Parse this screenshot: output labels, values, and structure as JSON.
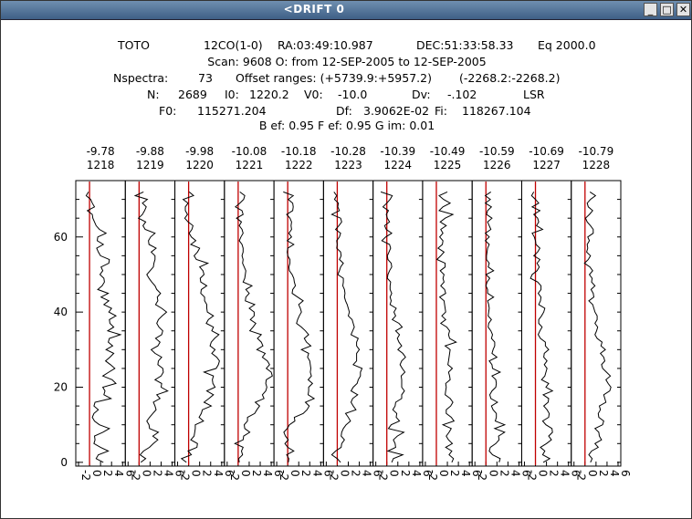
{
  "window": {
    "title": "<DRIFT   0",
    "minimize_glyph": "_",
    "maximize_glyph": "□",
    "close_glyph": "✕"
  },
  "header": {
    "line1": [
      "TOTO",
      "12CO(1-0)",
      "RA:03:49:10.987",
      "DEC:51:33:58.33",
      "Eq 2000.0"
    ],
    "line2": "Scan: 9608   O: from 12-SEP-2005 to 12-SEP-2005",
    "line3": [
      "Nspectra:",
      "73",
      "Offset ranges: (+5739.9:+5957.2)",
      "(-2268.2:-2268.2)"
    ],
    "line4": [
      "N:",
      "2689",
      "I0:",
      "1220.2",
      "V0:",
      "-10.0",
      "Dv:",
      "-.102",
      "LSR"
    ],
    "line5": [
      "F0:",
      "115271.204",
      "Df:",
      "3.9062E-02",
      "Fi:",
      "118267.104"
    ],
    "line6": "B ef: 0.95   F ef: 0.95   G im: 0.01"
  },
  "chart_data": {
    "type": "line",
    "title": "",
    "xlabel": "",
    "ylabel": "",
    "ylim": [
      -1,
      75
    ],
    "yticks": [
      0,
      20,
      40,
      60
    ],
    "panel_xlim": [
      -2,
      6
    ],
    "panel_xtick_labels": [
      "-2",
      "0",
      "2",
      "4",
      "6"
    ],
    "zero_line_color": "#c00000",
    "series": [
      {
        "velocity": "-9.78",
        "channel": "1218",
        "values": [
          2.5,
          1.2,
          1.6,
          3.4,
          2.0,
          0.8,
          1.0,
          0.9,
          2.4,
          3.6,
          1.8,
          0.9,
          0.5,
          0.8,
          1.6,
          0.8,
          1.0,
          3.9,
          2.6,
          2.8,
          2.4,
          4.8,
          4.1,
          2.4,
          3.5,
          4.6,
          3.8,
          2.9,
          3.7,
          4.4,
          3.0,
          4.2,
          3.4,
          3.6,
          5.6,
          3.3,
          4.4,
          3.7,
          3.6,
          4.8,
          3.5,
          4.0,
          2.6,
          3.5,
          2.1,
          3.4,
          1.5,
          2.3,
          2.7,
          2.6,
          1.9,
          2.4,
          2.1,
          3.5,
          3.6,
          2.0,
          1.6,
          1.3,
          2.5,
          1.4,
          1.5,
          3.0,
          1.8,
          1.2,
          0.9,
          0.6,
          0.5,
          -0.4,
          0.9,
          0.5,
          0.2,
          -0.6,
          -0.2
        ]
      },
      {
        "velocity": "-9.88",
        "channel": "1219",
        "values": [
          0.3,
          1.2,
          0.2,
          0.8,
          1.9,
          2.6,
          3.4,
          2.5,
          3.5,
          1.9,
          1.8,
          1.4,
          1.9,
          2.5,
          3.1,
          2.9,
          2.6,
          3.8,
          3.2,
          5.2,
          4.0,
          4.1,
          2.9,
          4.0,
          4.4,
          4.3,
          3.4,
          3.5,
          4.1,
          2.9,
          2.2,
          3.4,
          3.8,
          3.0,
          4.1,
          4.3,
          3.6,
          3.2,
          3.5,
          4.2,
          5.0,
          4.1,
          3.0,
          3.4,
          3.3,
          3.9,
          3.2,
          2.9,
          2.3,
          1.8,
          1.4,
          2.0,
          2.6,
          2.7,
          2.9,
          2.9,
          2.2,
          3.1,
          1.8,
          1.7,
          2.1,
          2.9,
          1.1,
          0.7,
          1.2,
          -0.1,
          0.6,
          1.0,
          1.3,
          0.6,
          1.5,
          -0.7,
          0.8
        ]
      },
      {
        "velocity": "-9.98",
        "channel": "1220",
        "values": [
          -0.4,
          -1.3,
          0.5,
          -0.1,
          1.5,
          1.6,
          0.4,
          1.0,
          1.1,
          1.2,
          1.2,
          2.7,
          1.9,
          2.3,
          2.5,
          4.1,
          2.8,
          3.7,
          4.5,
          3.3,
          4.8,
          4.4,
          4.3,
          4.5,
          2.8,
          5.0,
          5.4,
          5.6,
          5.1,
          4.2,
          4.8,
          3.9,
          4.1,
          4.7,
          5.5,
          4.2,
          4.5,
          3.2,
          3.6,
          4.5,
          3.4,
          3.3,
          3.3,
          2.9,
          2.9,
          2.2,
          2.3,
          3.3,
          2.2,
          2.1,
          2.8,
          2.6,
          2.0,
          3.5,
          1.4,
          1.0,
          1.6,
          2.0,
          0.4,
          1.3,
          0.5,
          0.1,
          0.6,
          0.8,
          -0.1,
          -0.7,
          -0.2,
          -0.6,
          -0.6,
          -0.1,
          -1.0,
          0.9,
          0.1
        ]
      },
      {
        "velocity": "-10.08",
        "channel": "1221",
        "values": [
          0.2,
          0.1,
          0.8,
          0.6,
          0.9,
          -0.6,
          0.9,
          1.0,
          2.1,
          1.2,
          1.1,
          1.7,
          1.7,
          3.0,
          3.4,
          3.9,
          3.1,
          4.7,
          4.4,
          5.0,
          5.2,
          5.0,
          5.1,
          6.2,
          6.0,
          5.1,
          5.7,
          5.3,
          4.4,
          4.9,
          3.4,
          4.5,
          4.2,
          3.5,
          4.2,
          2.1,
          2.7,
          3.2,
          2.2,
          2.9,
          2.9,
          2.0,
          3.0,
          1.3,
          1.4,
          2.0,
          1.4,
          2.5,
          0.9,
          1.2,
          1.3,
          1.4,
          1.1,
          0.8,
          0.9,
          0.7,
          0.9,
          0.9,
          0.7,
          0.2,
          0.5,
          0.9,
          0.7,
          0.2,
          0.6,
          -0.3,
          0.9,
          0.7,
          -0.5,
          0.3,
          1.0,
          1.2,
          0.3
        ]
      },
      {
        "velocity": "-10.18",
        "channel": "1222",
        "values": [
          0.1,
          0.2,
          -0.2,
          1.1,
          0.0,
          -0.5,
          0.1,
          -0.4,
          -0.7,
          -0.1,
          0.3,
          1.3,
          1.2,
          2.8,
          3.5,
          3.9,
          3.2,
          4.8,
          3.7,
          3.8,
          3.8,
          4.5,
          3.7,
          4.3,
          4.1,
          4.2,
          4.1,
          4.0,
          3.6,
          3.8,
          2.5,
          4.2,
          3.4,
          3.0,
          3.8,
          3.2,
          2.5,
          1.6,
          1.8,
          2.1,
          2.5,
          2.3,
          2.0,
          2.8,
          1.8,
          0.8,
          0.9,
          1.4,
          1.2,
          1.1,
          0.8,
          0.3,
          0.2,
          0.4,
          0.4,
          0.0,
          -0.1,
          0.0,
          1.1,
          -0.1,
          0.7,
          0.2,
          0.7,
          0.6,
          0.7,
          0.4,
          -0.2,
          0.9,
          1.0,
          0.9,
          0.1,
          1.0,
          -0.8
        ]
      },
      {
        "velocity": "-10.28",
        "channel": "1223",
        "values": [
          0.6,
          0.0,
          -1.0,
          -0.3,
          0.7,
          0.8,
          1.3,
          0.7,
          0.8,
          1.1,
          1.6,
          2.4,
          2.0,
          1.5,
          3.4,
          2.9,
          2.5,
          2.8,
          3.7,
          2.5,
          2.9,
          3.6,
          3.8,
          4.2,
          4.2,
          4.5,
          2.9,
          3.5,
          3.5,
          3.5,
          4.0,
          3.5,
          3.5,
          3.8,
          2.5,
          2.8,
          3.1,
          2.9,
          2.7,
          2.0,
          2.2,
          2.0,
          1.8,
          1.5,
          1.3,
          1.4,
          1.3,
          1.0,
          1.1,
          1.1,
          0.1,
          0.4,
          0.6,
          1.1,
          0.4,
          0.7,
          0.6,
          -0.1,
          0.0,
          -0.1,
          0.4,
          0.6,
          -0.3,
          0.3,
          0.8,
          0.6,
          -1.0,
          0.4,
          0.1,
          0.2,
          -0.5,
          -0.1,
          -0.6
        ]
      },
      {
        "velocity": "-10.39",
        "channel": "1224",
        "values": [
          0.9,
          1.2,
          2.9,
          0.2,
          1.6,
          1.5,
          1.2,
          1.9,
          3.1,
          0.3,
          0.8,
          2.3,
          1.7,
          1.8,
          1.1,
          1.5,
          1.6,
          2.7,
          2.7,
          3.2,
          2.7,
          2.7,
          2.7,
          2.6,
          3.3,
          2.8,
          2.4,
          2.7,
          3.4,
          2.9,
          2.0,
          2.7,
          2.2,
          1.9,
          2.3,
          1.6,
          2.8,
          2.2,
          1.0,
          1.6,
          1.3,
          1.7,
          0.6,
          0.8,
          0.6,
          0.9,
          0.6,
          0.6,
          0.7,
          0.1,
          0.2,
          0.5,
          0.9,
          0.8,
          0.2,
          0.1,
          0.4,
          0.7,
          0.5,
          -0.9,
          -0.2,
          0.9,
          -0.1,
          -0.4,
          0.5,
          0.1,
          -0.1,
          0.3,
          -0.7,
          0.0,
          0.6,
          1.0,
          -1.1
        ]
      },
      {
        "velocity": "-10.49",
        "channel": "1225",
        "values": [
          2.8,
          3.1,
          2.3,
          2.8,
          1.7,
          2.9,
          2.2,
          1.8,
          2.3,
          2.7,
          1.2,
          3.2,
          2.7,
          1.8,
          1.8,
          2.6,
          3.0,
          2.5,
          1.6,
          1.7,
          1.8,
          1.7,
          2.5,
          2.4,
          2.2,
          2.9,
          2.1,
          2.2,
          2.3,
          2.4,
          2.5,
          1.6,
          3.6,
          2.4,
          2.2,
          2.4,
          1.9,
          0.8,
          1.7,
          1.0,
          1.7,
          1.6,
          1.5,
          1.4,
          0.6,
          1.7,
          1.5,
          0.8,
          1.4,
          1.2,
          1.4,
          0.7,
          1.6,
          1.6,
          0.1,
          0.8,
          1.4,
          0.3,
          1.1,
          1.2,
          0.6,
          1.2,
          0.8,
          1.8,
          0.7,
          1.6,
          3.0,
          0.5,
          1.2,
          2.5,
          1.3,
          0.5,
          2.0
        ]
      },
      {
        "velocity": "-10.59",
        "channel": "1226",
        "values": [
          2.4,
          2.6,
          1.2,
          0.6,
          0.8,
          1.8,
          2.4,
          2.3,
          3.4,
          1.6,
          3.4,
          1.7,
          1.9,
          1.9,
          1.3,
          1.0,
          2.1,
          0.9,
          0.7,
          1.1,
          1.8,
          1.9,
          1.8,
          1.1,
          2.6,
          1.2,
          1.1,
          0.6,
          2.0,
          1.1,
          1.3,
          1.6,
          1.6,
          1.0,
          1.2,
          0.9,
          0.4,
          0.5,
          1.0,
          0.4,
          0.5,
          0.6,
          0.5,
          0.3,
          1.4,
          0.3,
          0.3,
          0.0,
          0.2,
          0.7,
          0.0,
          1.4,
          0.4,
          0.6,
          0.1,
          0.1,
          0.2,
          0.3,
          0.6,
          -0.1,
          0.6,
          -0.1,
          0.9,
          0.6,
          0.3,
          1.1,
          0.1,
          0.3,
          1.0,
          -0.1,
          0.8,
          -0.1,
          0.9
        ]
      },
      {
        "velocity": "-10.69",
        "channel": "1227",
        "values": [
          1.4,
          2.6,
          1.3,
          1.7,
          0.9,
          2.0,
          2.9,
          2.4,
          3.1,
          3.0,
          1.9,
          1.3,
          2.4,
          2.5,
          2.1,
          1.5,
          2.3,
          2.4,
          1.4,
          3.1,
          1.9,
          2.4,
          1.1,
          1.7,
          1.9,
          2.1,
          1.6,
          2.1,
          1.5,
          1.6,
          2.4,
          1.8,
          1.8,
          0.9,
          0.5,
          0.8,
          1.2,
          0.6,
          0.6,
          1.1,
          1.5,
          1.7,
          0.6,
          0.9,
          1.0,
          0.5,
          1.0,
          1.0,
          0.4,
          -0.9,
          -0.6,
          0.3,
          0.7,
          0.3,
          0.8,
          -0.3,
          0.4,
          0.8,
          0.1,
          0.0,
          -0.2,
          -0.6,
          1.3,
          0.2,
          0.6,
          0.4,
          -0.3,
          0.8,
          -0.6,
          0.6,
          0.0,
          -0.7,
          -0.3
        ]
      },
      {
        "velocity": "-10.79",
        "channel": "1228",
        "values": [
          1.0,
          1.3,
          0.7,
          1.2,
          2.4,
          1.8,
          3.0,
          2.6,
          2.5,
          1.8,
          3.2,
          3.4,
          2.5,
          2.4,
          2.8,
          2.6,
          3.8,
          3.6,
          3.4,
          4.5,
          4.7,
          4.2,
          3.8,
          4.6,
          3.9,
          3.2,
          3.0,
          3.6,
          3.4,
          2.8,
          3.7,
          2.9,
          3.1,
          2.2,
          1.8,
          2.1,
          2.3,
          1.8,
          2.2,
          2.2,
          1.8,
          1.6,
          1.4,
          0.7,
          1.6,
          1.5,
          1.1,
          1.8,
          1.2,
          1.3,
          0.8,
          1.4,
          0.9,
          -0.1,
          0.6,
          1.0,
          0.3,
          0.5,
          0.4,
          0.8,
          0.5,
          1.5,
          1.5,
          1.0,
          0.4,
          0.1,
          0.8,
          1.4,
          0.6,
          0.4,
          1.0,
          1.9,
          0.9
        ]
      }
    ]
  }
}
